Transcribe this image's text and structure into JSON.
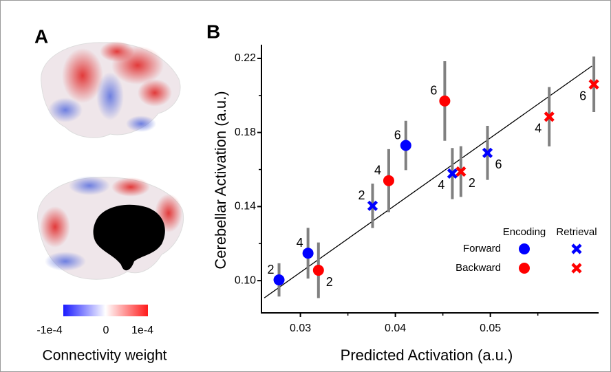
{
  "panel_a": {
    "label": "A",
    "colorbar_ticks": [
      "-1e-4",
      "0",
      "1e-4"
    ],
    "colorbar_title": "Connectivity weight"
  },
  "chart_data": {
    "type": "scatter",
    "panel_label": "B",
    "x_label": "Predicted Activation (a.u.)",
    "y_label": "Cerebellar Activation (a.u.)",
    "xlim": [
      0.0259,
      0.0614
    ],
    "ylim": [
      0.0826,
      0.2274
    ],
    "xticks": [
      0.03,
      0.04,
      0.05
    ],
    "xticks_minor": [
      0.035,
      0.045,
      0.055
    ],
    "yticks": [
      {
        "value": 0.1,
        "label": "0.10"
      },
      0.14,
      0.18,
      0.22
    ],
    "yticks_minor": [
      0.12,
      0.16,
      0.2
    ],
    "legend": {
      "columns": [
        "Encoding",
        "Retrieval"
      ],
      "rows": [
        "Forward",
        "Backward"
      ]
    },
    "fit_line": {
      "x": [
        0.0262,
        0.0607
      ],
      "y": [
        0.0907,
        0.2159
      ],
      "color": "#000000"
    },
    "error_color": "#808080",
    "series": [
      {
        "marker": "circle",
        "color": "#0000ff",
        "labels": [
          2,
          4,
          6
        ],
        "x": [
          0.02775,
          0.0308,
          0.0411
        ],
        "values": [
          0.1004,
          0.1148,
          0.173
        ],
        "errors": [
          0.009,
          0.0137,
          0.0133
        ]
      },
      {
        "marker": "cross",
        "color": "#0000ff",
        "labels": [
          2,
          4,
          6
        ],
        "x": [
          0.0376,
          0.046,
          0.0497
        ],
        "values": [
          0.1404,
          0.1578,
          0.169
        ],
        "errors": [
          0.012,
          0.0138,
          0.0146
        ]
      },
      {
        "marker": "circle",
        "color": "#ff0000",
        "labels": [
          2,
          4,
          6
        ],
        "x": [
          0.0319,
          0.0393,
          0.0452
        ],
        "values": [
          0.1056,
          0.154,
          0.197
        ],
        "errors": [
          0.015,
          0.017,
          0.0215
        ]
      },
      {
        "marker": "cross",
        "color": "#ff0000",
        "labels": [
          2,
          4,
          6
        ],
        "x": [
          0.0469,
          0.0562,
          0.0609
        ],
        "values": [
          0.1589,
          0.1885,
          0.206
        ],
        "errors": [
          0.0137,
          0.016,
          0.015
        ]
      }
    ]
  }
}
